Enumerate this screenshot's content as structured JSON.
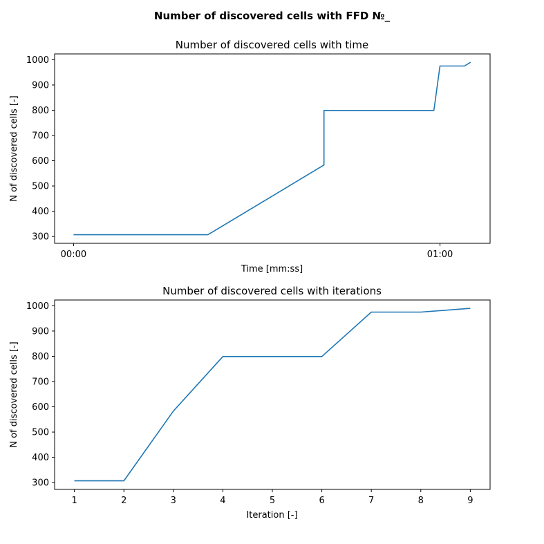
{
  "suptitle": "Number of discovered cells with FFD №_",
  "chart_data": [
    {
      "type": "line",
      "title": "Number of discovered cells with time",
      "xlabel": "Time [mm:ss]",
      "ylabel": "N of discovered cells [-]",
      "x_unit": "seconds",
      "xlim": [
        -3.1,
        68.2
      ],
      "ylim": [
        273,
        1023
      ],
      "xticks": [
        {
          "value": 0,
          "label": "00:00"
        },
        {
          "value": 60,
          "label": "01:00"
        }
      ],
      "yticks": [
        300,
        400,
        500,
        600,
        700,
        800,
        900,
        1000
      ],
      "grid": false,
      "series": [
        {
          "color": "#1f77b4",
          "x": [
            0,
            22,
            41,
            41,
            59,
            60,
            64,
            65
          ],
          "y": [
            307,
            307,
            583,
            799,
            799,
            975,
            975,
            990
          ]
        }
      ]
    },
    {
      "type": "line",
      "title": "Number of discovered cells with iterations",
      "xlabel": "Iteration [-]",
      "ylabel": "N of discovered cells [-]",
      "xlim": [
        0.6,
        9.4
      ],
      "ylim": [
        273,
        1023
      ],
      "xticks": [
        {
          "value": 1,
          "label": "1"
        },
        {
          "value": 2,
          "label": "2"
        },
        {
          "value": 3,
          "label": "3"
        },
        {
          "value": 4,
          "label": "4"
        },
        {
          "value": 5,
          "label": "5"
        },
        {
          "value": 6,
          "label": "6"
        },
        {
          "value": 7,
          "label": "7"
        },
        {
          "value": 8,
          "label": "8"
        },
        {
          "value": 9,
          "label": "9"
        }
      ],
      "yticks": [
        300,
        400,
        500,
        600,
        700,
        800,
        900,
        1000
      ],
      "grid": false,
      "series": [
        {
          "color": "#1f77b4",
          "x": [
            1,
            2,
            3,
            4,
            5,
            6,
            7,
            8,
            9
          ],
          "y": [
            307,
            307,
            583,
            799,
            799,
            799,
            975,
            975,
            990
          ]
        }
      ]
    }
  ]
}
